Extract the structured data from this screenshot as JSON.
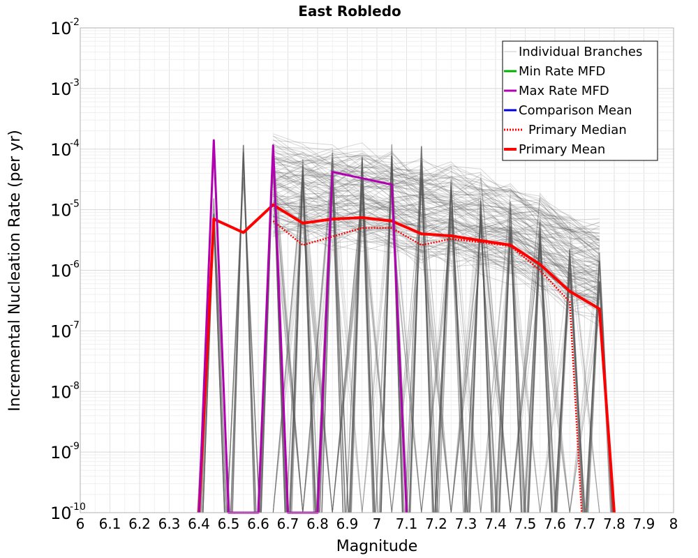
{
  "chart_data": {
    "type": "line",
    "title": "East Robledo",
    "xlabel": "Magnitude",
    "ylabel": "Incremental Nucleation Rate (per yr)",
    "xlim": [
      6,
      8
    ],
    "ylim": [
      1e-10,
      0.01
    ],
    "yscale": "log",
    "grid": true,
    "legend_position": "top-right",
    "x_ticks": [
      "6",
      "6.1",
      "6.2",
      "6.3",
      "6.4",
      "6.5",
      "6.6",
      "6.7",
      "6.8",
      "6.9",
      "7",
      "7.1",
      "7.2",
      "7.3",
      "7.4",
      "7.5",
      "7.6",
      "7.7",
      "7.8",
      "7.9",
      "8"
    ],
    "y_ticks": [
      {
        "base": "10",
        "exp": "-10",
        "value": 1e-10
      },
      {
        "base": "10",
        "exp": "-9",
        "value": 1e-09
      },
      {
        "base": "10",
        "exp": "-8",
        "value": 1e-08
      },
      {
        "base": "10",
        "exp": "-7",
        "value": 1e-07
      },
      {
        "base": "10",
        "exp": "-6",
        "value": 1e-06
      },
      {
        "base": "10",
        "exp": "-5",
        "value": 1e-05
      },
      {
        "base": "10",
        "exp": "-4",
        "value": 0.0001
      },
      {
        "base": "10",
        "exp": "-3",
        "value": 0.001
      },
      {
        "base": "10",
        "exp": "-2",
        "value": 0.01
      }
    ],
    "legend": [
      {
        "name": "Individual Branches",
        "color": "#c8c8c8",
        "style": "thin"
      },
      {
        "name": "Min Rate MFD",
        "color": "#00b000",
        "style": "solid"
      },
      {
        "name": "Max Rate MFD",
        "color": "#b000b0",
        "style": "solid"
      },
      {
        "name": "Comparison Mean",
        "color": "#0000dd",
        "style": "solid"
      },
      {
        "name": "Primary Median",
        "color": "#ff0000",
        "style": "dotted"
      },
      {
        "name": "Primary Mean",
        "color": "#ff0000",
        "style": "thick"
      }
    ],
    "series": [
      {
        "name": "Primary Mean",
        "color": "#ff0000",
        "style": "thick",
        "x": [
          6.4,
          6.45,
          6.55,
          6.65,
          6.75,
          6.85,
          6.95,
          7.05,
          7.15,
          7.25,
          7.35,
          7.45,
          7.55,
          7.65,
          7.75,
          7.8
        ],
        "y": [
          1e-10,
          7e-06,
          4.2e-06,
          1.2e-05,
          6e-06,
          7e-06,
          7.4e-06,
          6.5e-06,
          4e-06,
          3.7e-06,
          3.1e-06,
          2.6e-06,
          1.25e-06,
          4.5e-07,
          2.3e-07,
          1e-10
        ]
      },
      {
        "name": "Primary Median",
        "color": "#ff0000",
        "style": "dotted",
        "x": [
          6.65,
          6.75,
          6.85,
          6.95,
          7.05,
          7.15,
          7.25,
          7.35,
          7.45,
          7.55,
          7.65,
          7.69
        ],
        "y": [
          6.5e-06,
          2.6e-06,
          3.6e-06,
          5e-06,
          5e-06,
          2.6e-06,
          3.3e-06,
          2.9e-06,
          2.5e-06,
          1e-06,
          3e-07,
          1e-10
        ]
      },
      {
        "name": "Max Rate MFD",
        "color": "#b000b0",
        "style": "solid",
        "x": [
          6.4,
          6.45,
          6.5,
          6.6,
          6.65,
          6.7,
          6.8,
          6.85,
          7.05,
          7.1
        ],
        "y": [
          1e-10,
          0.00014,
          1e-10,
          1e-10,
          0.000115,
          1e-10,
          1e-10,
          4.2e-05,
          2.6e-05,
          1e-10
        ]
      }
    ]
  }
}
